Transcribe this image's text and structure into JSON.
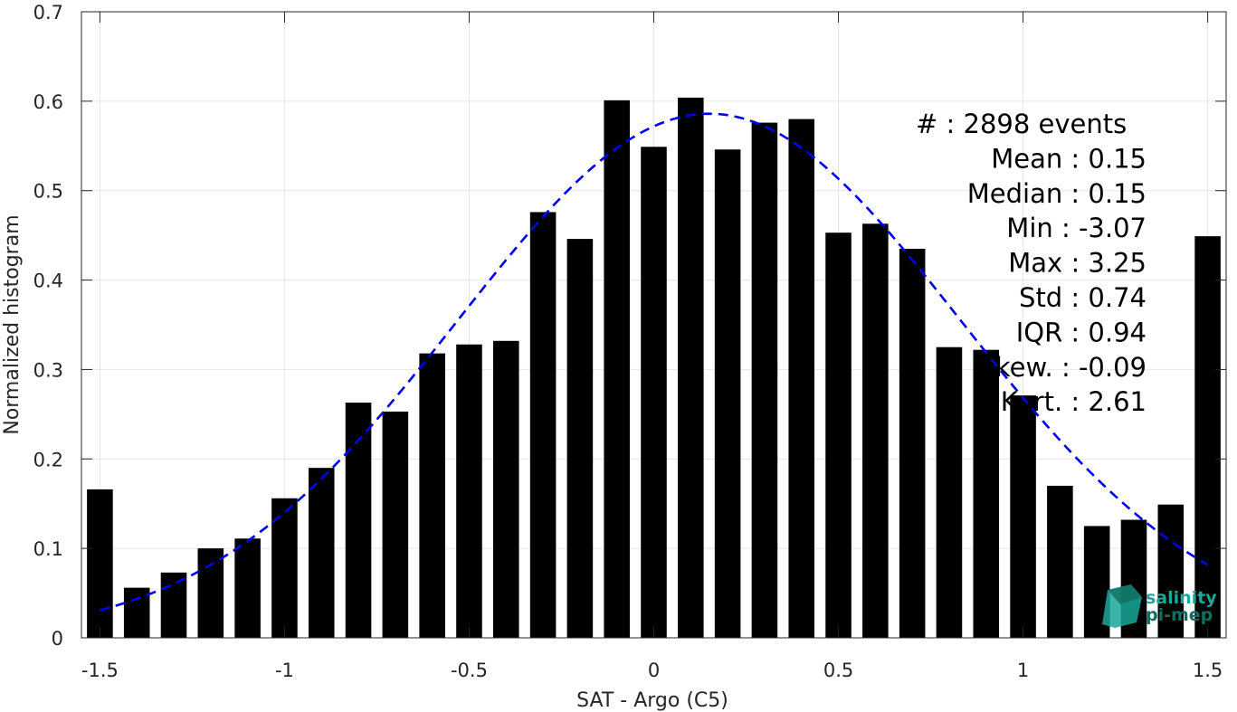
{
  "chart_data": {
    "type": "bar",
    "xlabel": "SAT - Argo (C5)",
    "ylabel": "Normalized histogram",
    "xlim": [
      -1.55,
      1.55
    ],
    "ylim": [
      0,
      0.7
    ],
    "xticks": [
      -1.5,
      -1,
      -0.5,
      0,
      0.5,
      1,
      1.5
    ],
    "xtick_labels": [
      "-1.5",
      "-1",
      "-0.5",
      "0",
      "0.5",
      "1",
      "1.5"
    ],
    "yticks": [
      0,
      0.1,
      0.2,
      0.3,
      0.4,
      0.5,
      0.6,
      0.7
    ],
    "ytick_labels": [
      "0",
      "0.1",
      "0.2",
      "0.3",
      "0.4",
      "0.5",
      "0.6",
      "0.7"
    ],
    "grid": true,
    "bar_color": "#000000",
    "bars": {
      "x": [
        -1.5,
        -1.4,
        -1.3,
        -1.2,
        -1.1,
        -1.0,
        -0.9,
        -0.8,
        -0.7,
        -0.6,
        -0.5,
        -0.4,
        -0.3,
        -0.2,
        -0.1,
        0.0,
        0.1,
        0.2,
        0.3,
        0.4,
        0.5,
        0.6,
        0.7,
        0.8,
        0.9,
        1.0,
        1.1,
        1.2,
        1.3,
        1.4,
        1.5
      ],
      "values": [
        0.166,
        0.056,
        0.073,
        0.1,
        0.111,
        0.156,
        0.19,
        0.263,
        0.253,
        0.318,
        0.328,
        0.332,
        0.476,
        0.446,
        0.601,
        0.549,
        0.604,
        0.546,
        0.576,
        0.58,
        0.453,
        0.463,
        0.435,
        0.325,
        0.322,
        0.271,
        0.17,
        0.125,
        0.132,
        0.149,
        0.449
      ]
    },
    "fit": {
      "type": "gaussian",
      "color": "#0000ee",
      "style": "dashed",
      "x_range": [
        -1.5,
        1.5
      ],
      "mean": 0.15,
      "std": 0.68,
      "peak": 0.586
    }
  },
  "stats": [
    {
      "label": "#",
      "sep": ":",
      "value": "2898 events"
    },
    {
      "label": "Mean",
      "sep": ":",
      "value": "0.15"
    },
    {
      "label": "Median",
      "sep": ":",
      "value": "0.15"
    },
    {
      "label": "Min",
      "sep": ":",
      "value": "-3.07"
    },
    {
      "label": "Max",
      "sep": ":",
      "value": "3.25"
    },
    {
      "label": "Std",
      "sep": ":",
      "value": "0.74"
    },
    {
      "label": "IQR",
      "sep": ":",
      "value": "0.94"
    },
    {
      "label": "Skew.",
      "sep": ":",
      "value": "-0.09"
    },
    {
      "label": "Kurt.",
      "sep": ":",
      "value": "2.61"
    }
  ],
  "logo": {
    "line1": "salinity",
    "line2": "pi-mep",
    "color1": "#1aa89a",
    "color2": "#0f6e60"
  }
}
